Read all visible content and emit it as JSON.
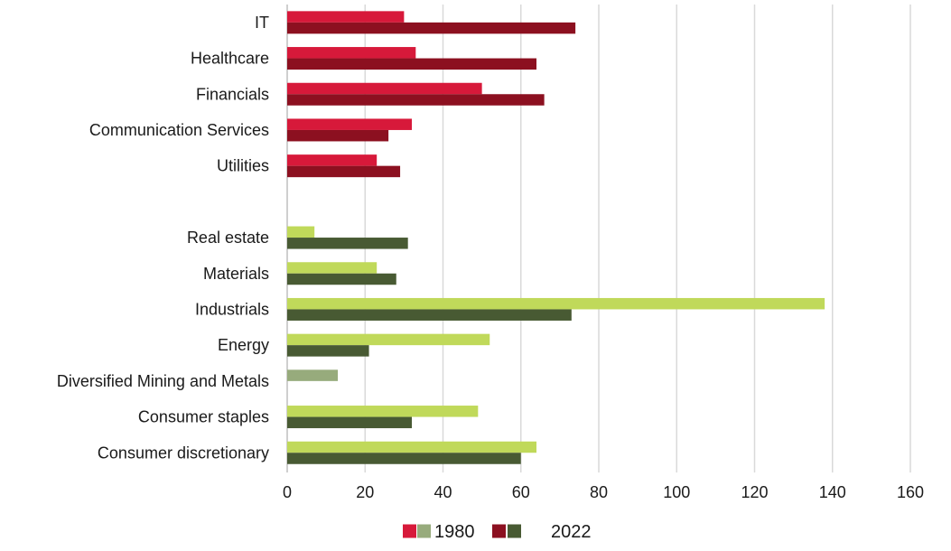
{
  "chart_data": {
    "type": "bar",
    "orientation": "horizontal",
    "categories": [
      "IT",
      "Healthcare",
      "Financials",
      "Communication Services",
      "Utilities",
      "",
      "Real estate",
      "Materials",
      "Industrials",
      "Energy",
      "Diversified Mining and Metals",
      "Consumer staples",
      "Consumer discretionary"
    ],
    "series": [
      {
        "name": "1980",
        "values": [
          30,
          33,
          50,
          32,
          23,
          null,
          7,
          23,
          138,
          52,
          13,
          49,
          64
        ]
      },
      {
        "name": "2022",
        "values": [
          74,
          64,
          66,
          26,
          29,
          null,
          31,
          28,
          73,
          21,
          null,
          32,
          60
        ]
      }
    ],
    "group_colors": {
      "top": {
        "1980": "#d7193a",
        "2022": "#8c1020"
      },
      "bottom": {
        "1980": "#c0d95a",
        "2022": "#485a33"
      }
    },
    "special_colors": {
      "Diversified Mining and Metals": {
        "1980": "#97ab7c"
      }
    },
    "top_group_count": 6,
    "xlim": [
      0,
      160
    ],
    "xticks": [
      0,
      20,
      40,
      60,
      80,
      100,
      120,
      140,
      160
    ],
    "xtick_labels": [
      "0",
      "20",
      "40",
      "60",
      "80",
      "100",
      "120",
      "140",
      "160"
    ],
    "grid": "vertical",
    "legend": {
      "position": "bottom-center",
      "entries": [
        {
          "label": "1980",
          "colors": [
            "#d7193a",
            "#97ab7c"
          ]
        },
        {
          "label": "2022",
          "colors": [
            "#8c1020",
            "#485a33"
          ]
        }
      ]
    },
    "title": "",
    "xlabel": "",
    "ylabel": ""
  }
}
